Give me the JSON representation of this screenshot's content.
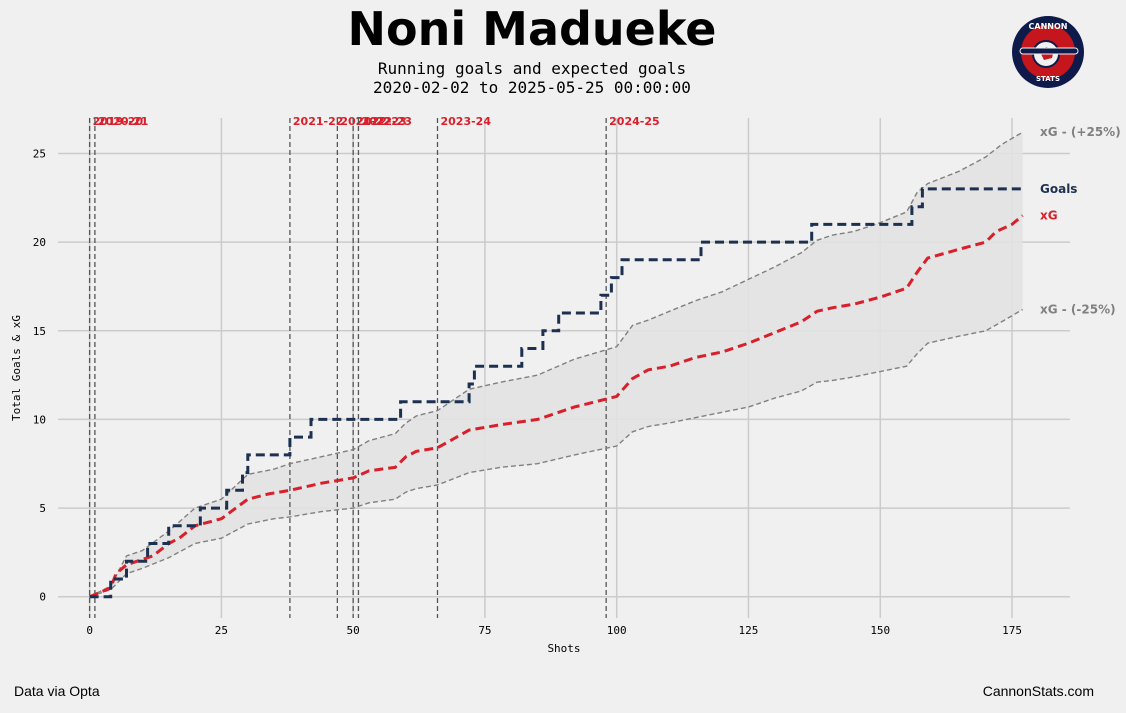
{
  "header": {
    "title": "Noni Madueke",
    "subtitle_line1": "Running goals and expected goals",
    "subtitle_line2": "2020-02-02 to 2025-05-25 00:00:00"
  },
  "logo": {
    "top_text": "CANNON",
    "bottom_text": "STATS",
    "icon": "cannon-stats-logo"
  },
  "footer": {
    "left": "Data via Opta",
    "right": "CannonStats.com"
  },
  "colors": {
    "background": "#f0f0f0",
    "goals": "#1c3050",
    "xg": "#d81f2a",
    "band": "#808080",
    "band_fill": "#e2e2e2",
    "grid": "#cbcbcb",
    "season_line": "#555555",
    "season_label": "#d81f2a"
  },
  "chart_data": {
    "type": "line",
    "xlabel": "Shots",
    "ylabel": "Total Goals & xG",
    "xlim": [
      -6,
      186
    ],
    "ylim": [
      -1.2,
      27
    ],
    "xticks": [
      0,
      25,
      50,
      75,
      100,
      125,
      150,
      175
    ],
    "yticks": [
      0,
      5,
      10,
      15,
      20,
      25
    ],
    "grid": true,
    "end_labels": {
      "upper": "xG - (+25%)",
      "goals": "Goals",
      "xg": "xG",
      "lower": "xG - (-25%)"
    },
    "seasons": [
      {
        "label": "2019-20",
        "shot": 0
      },
      {
        "label": "2020-21",
        "shot": 1
      },
      {
        "label": "2021-22",
        "shot": 38
      },
      {
        "label": "2021-22",
        "shot": 47
      },
      {
        "label": "2022-23",
        "shot": 50
      },
      {
        "label": "2022-23",
        "shot": 51
      },
      {
        "label": "2023-24",
        "shot": 66
      },
      {
        "label": "2024-25",
        "shot": 98
      }
    ],
    "series": [
      {
        "name": "Goals",
        "points": [
          [
            0,
            0
          ],
          [
            4,
            0
          ],
          [
            4,
            1
          ],
          [
            6,
            1
          ],
          [
            7,
            2
          ],
          [
            10,
            2
          ],
          [
            11,
            3
          ],
          [
            14,
            3
          ],
          [
            15,
            4
          ],
          [
            19,
            4
          ],
          [
            20,
            4
          ],
          [
            21,
            5
          ],
          [
            25,
            5
          ],
          [
            26,
            6
          ],
          [
            28,
            6
          ],
          [
            29,
            7
          ],
          [
            30,
            8
          ],
          [
            36,
            8
          ],
          [
            38,
            9
          ],
          [
            41,
            9
          ],
          [
            42,
            10
          ],
          [
            58,
            10
          ],
          [
            59,
            11
          ],
          [
            71,
            11
          ],
          [
            72,
            12
          ],
          [
            73,
            13
          ],
          [
            81,
            13
          ],
          [
            82,
            14
          ],
          [
            85,
            14
          ],
          [
            86,
            15
          ],
          [
            88,
            15
          ],
          [
            89,
            16
          ],
          [
            95,
            16
          ],
          [
            97,
            17
          ],
          [
            98,
            17
          ],
          [
            99,
            18
          ],
          [
            101,
            19
          ],
          [
            115,
            19
          ],
          [
            116,
            20
          ],
          [
            136,
            20
          ],
          [
            137,
            21
          ],
          [
            155,
            21
          ],
          [
            156,
            22
          ],
          [
            158,
            23
          ],
          [
            177,
            23
          ]
        ]
      },
      {
        "name": "xG",
        "points": [
          [
            0,
            0
          ],
          [
            4,
            0.5
          ],
          [
            5,
            1.3
          ],
          [
            7,
            1.8
          ],
          [
            10,
            2.1
          ],
          [
            12,
            2.3
          ],
          [
            15,
            3.0
          ],
          [
            17,
            3.3
          ],
          [
            20,
            4.0
          ],
          [
            25,
            4.4
          ],
          [
            30,
            5.5
          ],
          [
            34,
            5.8
          ],
          [
            38,
            6.0
          ],
          [
            44,
            6.4
          ],
          [
            50,
            6.7
          ],
          [
            53,
            7.1
          ],
          [
            58,
            7.3
          ],
          [
            60,
            7.9
          ],
          [
            62,
            8.2
          ],
          [
            66,
            8.4
          ],
          [
            72,
            9.4
          ],
          [
            78,
            9.7
          ],
          [
            85,
            10.0
          ],
          [
            92,
            10.7
          ],
          [
            100,
            11.3
          ],
          [
            103,
            12.3
          ],
          [
            106,
            12.8
          ],
          [
            110,
            13.0
          ],
          [
            115,
            13.5
          ],
          [
            120,
            13.8
          ],
          [
            125,
            14.3
          ],
          [
            130,
            14.9
          ],
          [
            135,
            15.5
          ],
          [
            138,
            16.1
          ],
          [
            141,
            16.3
          ],
          [
            145,
            16.5
          ],
          [
            150,
            16.9
          ],
          [
            155,
            17.4
          ],
          [
            157,
            18.3
          ],
          [
            159,
            19.1
          ],
          [
            165,
            19.6
          ],
          [
            170,
            20.0
          ],
          [
            172,
            20.6
          ],
          [
            175,
            21.0
          ],
          [
            177,
            21.5
          ]
        ]
      },
      {
        "name": "xG - (+25%)",
        "points": [
          [
            0,
            0
          ],
          [
            4,
            0.6
          ],
          [
            7,
            2.3
          ],
          [
            10,
            2.6
          ],
          [
            15,
            3.7
          ],
          [
            20,
            5.0
          ],
          [
            25,
            5.5
          ],
          [
            30,
            6.9
          ],
          [
            35,
            7.2
          ],
          [
            38,
            7.5
          ],
          [
            44,
            7.9
          ],
          [
            50,
            8.3
          ],
          [
            53,
            8.8
          ],
          [
            58,
            9.2
          ],
          [
            60,
            9.8
          ],
          [
            62,
            10.2
          ],
          [
            66,
            10.5
          ],
          [
            72,
            11.7
          ],
          [
            78,
            12.1
          ],
          [
            85,
            12.5
          ],
          [
            92,
            13.4
          ],
          [
            100,
            14.1
          ],
          [
            103,
            15.3
          ],
          [
            106,
            15.6
          ],
          [
            110,
            16.1
          ],
          [
            115,
            16.7
          ],
          [
            120,
            17.2
          ],
          [
            125,
            17.9
          ],
          [
            130,
            18.6
          ],
          [
            135,
            19.4
          ],
          [
            138,
            20.1
          ],
          [
            141,
            20.4
          ],
          [
            145,
            20.6
          ],
          [
            150,
            21.1
          ],
          [
            155,
            21.7
          ],
          [
            157,
            22.8
          ],
          [
            159,
            23.3
          ],
          [
            165,
            24.0
          ],
          [
            170,
            24.8
          ],
          [
            173,
            25.5
          ],
          [
            177,
            26.2
          ]
        ]
      },
      {
        "name": "xG - (-25%)",
        "points": [
          [
            0,
            0
          ],
          [
            4,
            0.4
          ],
          [
            7,
            1.3
          ],
          [
            10,
            1.6
          ],
          [
            15,
            2.2
          ],
          [
            20,
            3.0
          ],
          [
            25,
            3.3
          ],
          [
            30,
            4.1
          ],
          [
            35,
            4.4
          ],
          [
            38,
            4.5
          ],
          [
            44,
            4.8
          ],
          [
            50,
            5.0
          ],
          [
            53,
            5.3
          ],
          [
            58,
            5.5
          ],
          [
            60,
            5.9
          ],
          [
            62,
            6.1
          ],
          [
            66,
            6.3
          ],
          [
            72,
            7.0
          ],
          [
            78,
            7.3
          ],
          [
            85,
            7.5
          ],
          [
            92,
            8.0
          ],
          [
            100,
            8.5
          ],
          [
            103,
            9.3
          ],
          [
            106,
            9.6
          ],
          [
            110,
            9.8
          ],
          [
            115,
            10.1
          ],
          [
            120,
            10.4
          ],
          [
            125,
            10.7
          ],
          [
            130,
            11.2
          ],
          [
            135,
            11.6
          ],
          [
            138,
            12.1
          ],
          [
            141,
            12.2
          ],
          [
            145,
            12.4
          ],
          [
            150,
            12.7
          ],
          [
            155,
            13.0
          ],
          [
            157,
            13.7
          ],
          [
            159,
            14.3
          ],
          [
            165,
            14.7
          ],
          [
            170,
            15.0
          ],
          [
            173,
            15.5
          ],
          [
            177,
            16.2
          ]
        ]
      }
    ]
  }
}
